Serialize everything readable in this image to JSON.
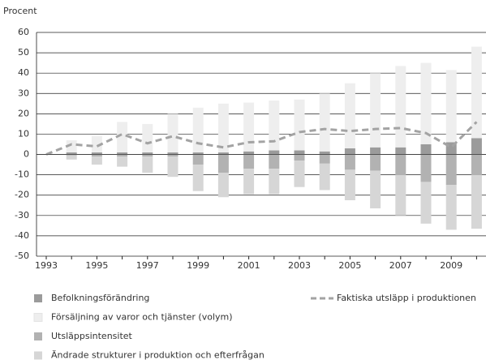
{
  "chart_data": {
    "type": "bar_line",
    "y_label": "Procent",
    "categories": [
      "1993",
      null,
      "1995",
      null,
      "1997",
      null,
      "1999",
      null,
      "2001",
      null,
      "2003",
      null,
      "2005",
      null,
      "2007",
      null,
      "2009",
      null
    ],
    "series": [
      {
        "name": "Befolkningsförändring",
        "color": "#9b9b9b",
        "stack": "pos",
        "values": [
          0,
          1,
          1,
          1,
          1,
          1,
          1,
          1,
          1.5,
          2,
          2,
          1.5,
          3,
          3.5,
          3.5,
          5,
          6,
          8
        ]
      },
      {
        "name": "Försäljning av varor och tjänster (volym)",
        "color": "#eeeeee",
        "stack": "pos",
        "values": [
          0,
          6,
          8,
          15,
          14,
          19,
          22,
          24,
          24,
          24.5,
          25,
          28.5,
          32,
          36.5,
          40,
          40,
          35.5,
          45
        ]
      },
      {
        "name": "Utsläppsintensitet",
        "color": "#b2b2b2",
        "stack": "neg",
        "values": [
          0,
          -0.5,
          -1,
          -1,
          -1,
          -1,
          -5,
          -9,
          -7,
          -7,
          -3,
          -4.5,
          -7.5,
          -8,
          -10,
          -13.5,
          -15,
          -10
        ]
      },
      {
        "name": "Ändrade strukturer i produktion och efterfrågan",
        "color": "#d6d6d6",
        "stack": "neg",
        "values": [
          0,
          -2,
          -4,
          -5,
          -8,
          -10,
          -13,
          -12,
          -12.5,
          -12.5,
          -13,
          -13,
          -15,
          -18.5,
          -20,
          -20.5,
          -22,
          -26.5
        ]
      },
      {
        "name": "Faktiska utsläpp i produktionen",
        "color": "#a3a3a3",
        "type": "line",
        "values": [
          0,
          5,
          4,
          10,
          5.5,
          9,
          5.5,
          3.5,
          6,
          6.5,
          11,
          12.5,
          11.5,
          12.5,
          13,
          10.5,
          3.5,
          16
        ]
      }
    ],
    "ylim": [
      -50,
      60
    ],
    "yticks": [
      -50,
      -40,
      -30,
      -20,
      -10,
      0,
      10,
      20,
      30,
      40,
      50,
      60
    ]
  }
}
